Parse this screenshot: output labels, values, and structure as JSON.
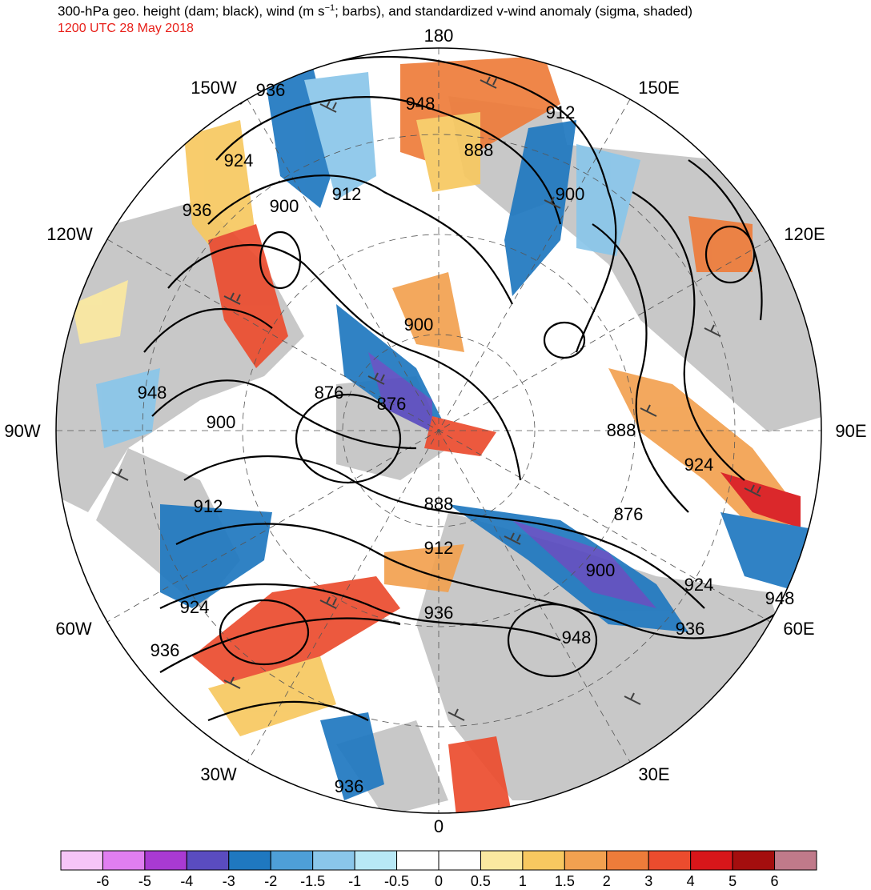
{
  "title": "300-hPa geo. height (dam; black), wind (m s",
  "title_sup": "−1",
  "title_rest": "; barbs), and standardized v-wind anomaly (sigma, shaded)",
  "subtitle": "1200 UTC 28 May 2018",
  "longitude_labels": [
    "180",
    "150E",
    "120E",
    "90E",
    "60E",
    "30E",
    "0",
    "30W",
    "60W",
    "90W",
    "120W",
    "150W"
  ],
  "contour_labels": [
    "936",
    "948",
    "912",
    "888",
    "924",
    "936",
    "912",
    "900",
    "900",
    "900",
    "948",
    "876",
    "876",
    "900",
    "888",
    "924",
    "912",
    "888",
    "876",
    "912",
    "900",
    "924",
    "936",
    "924",
    "936",
    "948",
    "936",
    "948",
    "936"
  ],
  "colorbar": {
    "tick_labels": [
      "-6",
      "-5",
      "-4",
      "-3",
      "-2",
      "-1.5",
      "-1",
      "-0.5",
      "0",
      "0.5",
      "1",
      "1.5",
      "2",
      "3",
      "4",
      "5",
      "6"
    ],
    "colors": [
      "#f6c5f7",
      "#e07ef0",
      "#a93ad2",
      "#5a4cc0",
      "#1f78c0",
      "#4e9fd8",
      "#8ac6ea",
      "#b8e8f6",
      "#ffffff",
      "#ffffff",
      "#fbe9a0",
      "#f7c860",
      "#f2a150",
      "#ee7c3a",
      "#eb4c2e",
      "#d8161a",
      "#a40e0e",
      "#c07a8a"
    ]
  },
  "colors": {
    "title_subtitle": "#e8201a",
    "land": "#c8c8c8",
    "contour": "#000000",
    "barb": "#404040"
  }
}
